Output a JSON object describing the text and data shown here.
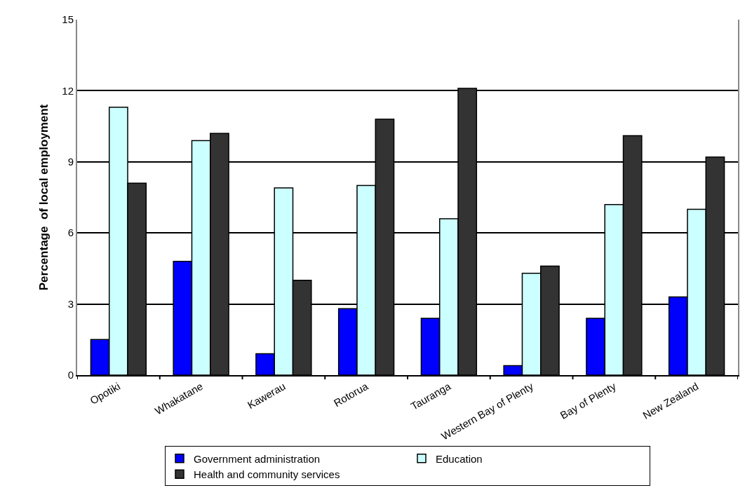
{
  "chart_data": {
    "type": "bar",
    "ylabel": "Percentage  of local employment",
    "categories": [
      "Opotiki",
      "Whakatane",
      "Kawerau",
      "Rotorua",
      "Tauranga",
      "Western Bay of Plenty",
      "Bay of Plenty",
      "New Zealand"
    ],
    "series": [
      {
        "name": "Government administration",
        "color": "#0000ff",
        "values": [
          1.5,
          4.8,
          0.9,
          2.8,
          2.4,
          0.4,
          2.4,
          3.3
        ]
      },
      {
        "name": "Education",
        "color": "#ccffff",
        "values": [
          11.3,
          9.9,
          7.9,
          8.0,
          6.6,
          4.3,
          7.2,
          7.0
        ]
      },
      {
        "name": "Health and community services",
        "color": "#333333",
        "values": [
          8.1,
          10.2,
          4.0,
          10.8,
          12.1,
          4.6,
          10.1,
          9.2
        ]
      }
    ],
    "ylim": [
      0,
      15
    ],
    "yticks": [
      0,
      3,
      6,
      9,
      12,
      15
    ],
    "grid": "y",
    "legend": "bottom"
  }
}
